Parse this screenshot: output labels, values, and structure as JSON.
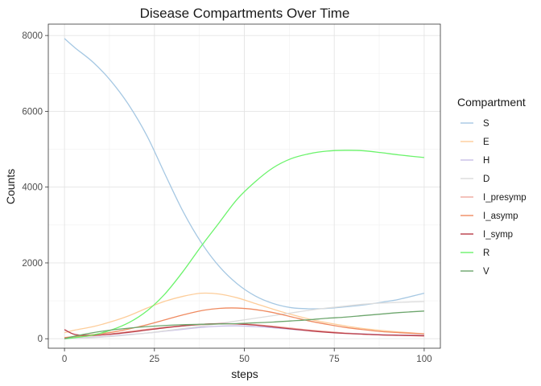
{
  "chart_data": {
    "type": "line",
    "title": "Disease Compartments Over Time",
    "xlabel": "steps",
    "ylabel": "Counts",
    "xlim": [
      -4.5,
      104.5
    ],
    "ylim": [
      -250,
      8300
    ],
    "xticks": [
      0,
      25,
      50,
      75,
      100
    ],
    "yticks": [
      0,
      2000,
      4000,
      6000,
      8000
    ],
    "grid": true,
    "legend": {
      "title": "Compartment",
      "placement": "right"
    },
    "x": [
      0,
      3,
      8,
      13,
      18,
      23,
      28,
      33,
      38,
      43,
      48,
      53,
      58,
      63,
      68,
      73,
      78,
      83,
      88,
      93,
      100
    ],
    "series": [
      {
        "name": "S",
        "color": "#a6c8e3",
        "values": [
          7920,
          7670,
          7290,
          6790,
          6150,
          5340,
          4330,
          3350,
          2540,
          1910,
          1450,
          1130,
          930,
          820,
          790,
          800,
          840,
          890,
          960,
          1040,
          1200
        ]
      },
      {
        "name": "E",
        "color": "#fdcd9a",
        "values": [
          160,
          230,
          320,
          450,
          610,
          810,
          990,
          1120,
          1200,
          1180,
          1080,
          930,
          780,
          640,
          520,
          420,
          340,
          270,
          220,
          180,
          130
        ]
      },
      {
        "name": "H",
        "color": "#c8bde6",
        "values": [
          0,
          15,
          40,
          70,
          110,
          150,
          200,
          250,
          300,
          330,
          340,
          320,
          290,
          250,
          210,
          180,
          150,
          130,
          110,
          100,
          90
        ]
      },
      {
        "name": "D",
        "color": "#dcdcdc",
        "values": [
          0,
          10,
          30,
          60,
          100,
          150,
          210,
          270,
          330,
          400,
          470,
          540,
          610,
          680,
          750,
          810,
          860,
          910,
          940,
          960,
          980
        ]
      },
      {
        "name": "I_presymp",
        "color": "#f0a89e",
        "values": [
          20,
          40,
          80,
          130,
          190,
          250,
          300,
          340,
          370,
          390,
          390,
          370,
          330,
          280,
          230,
          190,
          150,
          120,
          100,
          90,
          70
        ]
      },
      {
        "name": "I_asymp",
        "color": "#ef8a60",
        "values": [
          30,
          60,
          110,
          170,
          260,
          370,
          500,
          630,
          740,
          800,
          810,
          770,
          690,
          580,
          470,
          380,
          300,
          240,
          190,
          160,
          130
        ]
      },
      {
        "name": "I_symp",
        "color": "#b93c48",
        "values": [
          240,
          110,
          90,
          120,
          170,
          230,
          290,
          340,
          380,
          400,
          390,
          360,
          310,
          260,
          210,
          170,
          140,
          120,
          100,
          90,
          80
        ]
      },
      {
        "name": "R",
        "color": "#6bf36b",
        "values": [
          0,
          30,
          100,
          230,
          430,
          740,
          1190,
          1780,
          2440,
          3060,
          3680,
          4140,
          4510,
          4750,
          4880,
          4950,
          4970,
          4960,
          4910,
          4850,
          4780
        ]
      },
      {
        "name": "V",
        "color": "#6da66d",
        "values": [
          0,
          70,
          160,
          230,
          280,
          320,
          350,
          370,
          380,
          390,
          400,
          420,
          440,
          470,
          500,
          540,
          570,
          610,
          650,
          690,
          730
        ]
      }
    ]
  }
}
